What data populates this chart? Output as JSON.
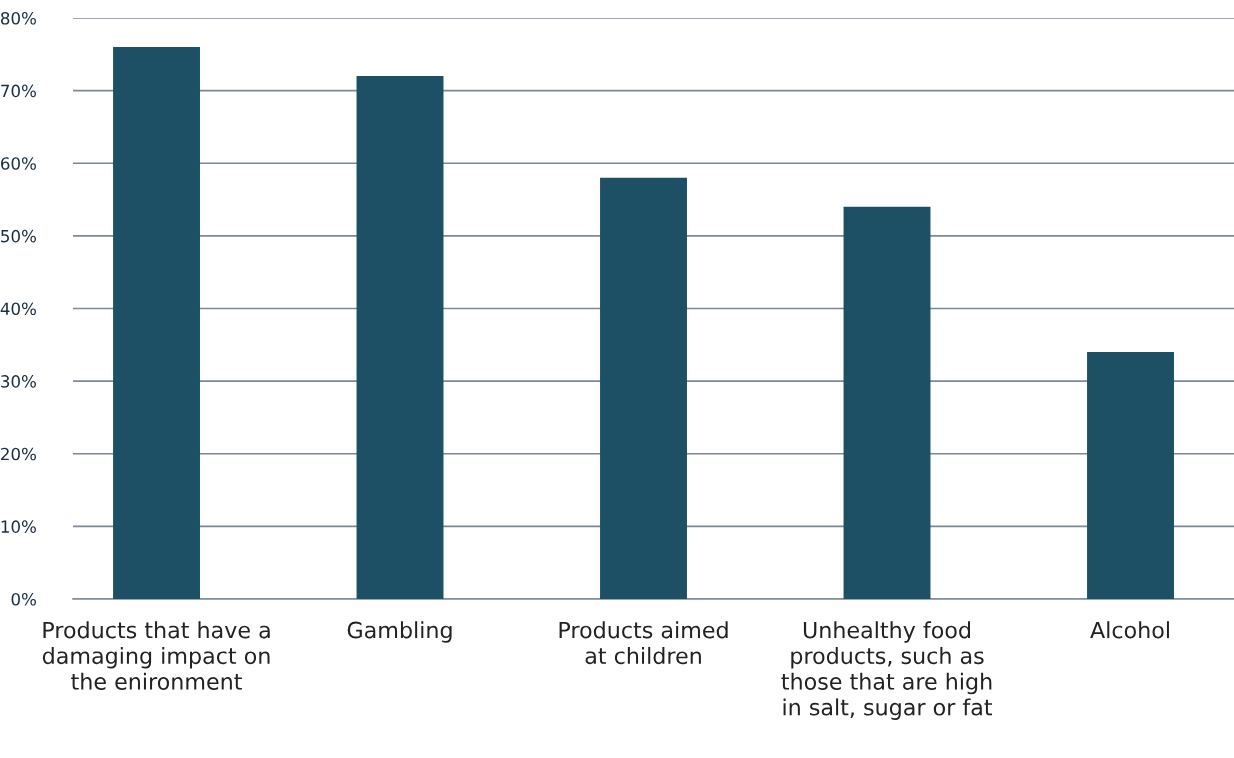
{
  "chart_data": {
    "type": "bar",
    "categories": [
      "Products that have a\ndamaging impact on\nthe enironment",
      "Gambling",
      "Products aimed\nat children",
      "Unhealthy food\nproducts, such as\nthose that are high\nin salt, sugar or fat",
      "Alcohol"
    ],
    "values": [
      76,
      72,
      58,
      54,
      34
    ],
    "color": "#1d5064",
    "ylim": [
      0,
      80
    ],
    "yticks": [
      {
        "value": 0,
        "label": "0%"
      },
      {
        "value": 10,
        "label": "10%"
      },
      {
        "value": 20,
        "label": "20%"
      },
      {
        "value": 30,
        "label": "30%"
      },
      {
        "value": 40,
        "label": "40%"
      },
      {
        "value": 50,
        "label": "50%"
      },
      {
        "value": 60,
        "label": "60%"
      },
      {
        "value": 70,
        "label": "70%"
      },
      {
        "value": 80,
        "label": "80%"
      }
    ],
    "grid": "y"
  }
}
